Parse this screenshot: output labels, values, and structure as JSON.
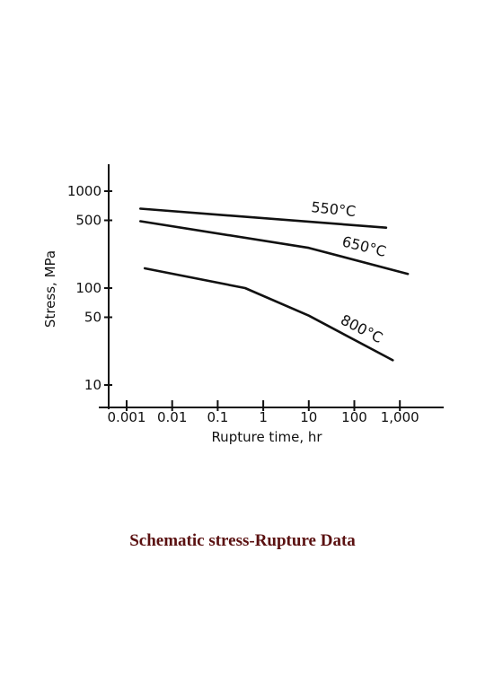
{
  "caption": "Schematic stress-Rupture Data",
  "chart_data": {
    "type": "line",
    "xlabel": "Rupture time, hr",
    "ylabel": "Stress, MPa",
    "x_scale": "log",
    "y_scale": "log",
    "xlim": [
      0.0005,
      8000
    ],
    "ylim": [
      8,
      1600
    ],
    "x_ticks": [
      0.001,
      0.01,
      0.1,
      1,
      10,
      100,
      1000
    ],
    "x_tick_labels": [
      "0.001",
      "0.01",
      "0.1",
      "1",
      "10",
      "100",
      "1,000"
    ],
    "y_ticks": [
      1000,
      500,
      100,
      50,
      10
    ],
    "y_tick_labels": [
      "1000",
      "500",
      "100",
      "50",
      "10"
    ],
    "grid": false,
    "line_color": "#111111",
    "series": [
      {
        "name": "550°C",
        "x": [
          0.002,
          500
        ],
        "y": [
          660,
          420
        ]
      },
      {
        "name": "650°C",
        "x": [
          0.002,
          10,
          1500
        ],
        "y": [
          490,
          260,
          140
        ]
      },
      {
        "name": "800°C",
        "x": [
          0.0025,
          0.4,
          10,
          700
        ],
        "y": [
          160,
          100,
          52,
          18
        ]
      }
    ]
  }
}
